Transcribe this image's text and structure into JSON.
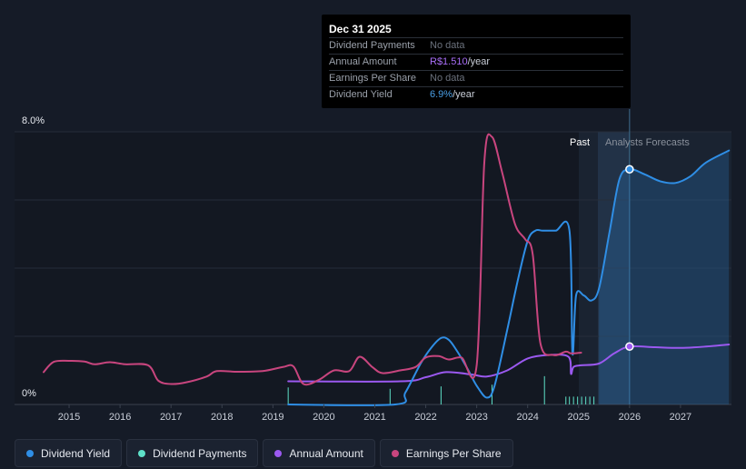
{
  "tooltip": {
    "date": "Dec 31 2025",
    "rows": [
      {
        "label": "Dividend Payments",
        "value": "No data",
        "unit": ""
      },
      {
        "label": "Annual Amount",
        "value": "R$1.510",
        "unit": "/year"
      },
      {
        "label": "Earnings Per Share",
        "value": "No data",
        "unit": ""
      },
      {
        "label": "Dividend Yield",
        "value": "6.9%",
        "unit": "/year"
      }
    ]
  },
  "zones": {
    "past": "Past",
    "forecast": "Analysts Forecasts"
  },
  "legend": [
    {
      "label": "Dividend Yield",
      "color": "#2f8ee5"
    },
    {
      "label": "Dividend Payments",
      "color": "#5ee0c8"
    },
    {
      "label": "Annual Amount",
      "color": "#9b59f0"
    },
    {
      "label": "Earnings Per Share",
      "color": "#c8457e"
    }
  ],
  "chart_data": {
    "type": "line",
    "y_tick_labels": [
      "8.0%",
      "0%"
    ],
    "ylim": [
      0,
      8
    ],
    "xlim": [
      2014.5,
      2028.0
    ],
    "x_ticks": [
      2015,
      2016,
      2017,
      2018,
      2019,
      2020,
      2021,
      2022,
      2023,
      2024,
      2025,
      2026,
      2027
    ],
    "past_end": 2025.0,
    "forecast_start": 2025.4,
    "cursor_x": 2026.0,
    "grid": true,
    "legend_position": "bottom",
    "colors": {
      "dividend_yield": "#2f8ee5",
      "dividend_payments": "#5ee0c8",
      "annual_amount": "#9b59f0",
      "earnings_per_share": "#c8457e"
    },
    "series": [
      {
        "name": "Dividend Yield",
        "x": [
          2019.3,
          2021.4,
          2021.6,
          2021.9,
          2022.1,
          2022.3,
          2022.45,
          2022.6,
          2022.8,
          2023.0,
          2023.2,
          2023.35,
          2023.6,
          2023.8,
          2024.0,
          2024.15,
          2024.3,
          2024.55,
          2024.82,
          2024.88,
          2024.95,
          2025.1,
          2025.25,
          2025.4,
          2025.6,
          2025.8,
          2026.0,
          2026.3,
          2026.6,
          2026.9,
          2027.2,
          2027.5,
          2027.95
        ],
        "y": [
          0.0,
          0.0,
          0.35,
          1.2,
          1.65,
          1.95,
          1.9,
          1.6,
          1.1,
          0.55,
          0.2,
          0.55,
          2.2,
          3.6,
          4.8,
          5.1,
          5.1,
          5.1,
          5.1,
          1.5,
          3.2,
          3.2,
          3.05,
          3.4,
          5.0,
          6.6,
          6.9,
          6.75,
          6.55,
          6.5,
          6.7,
          7.1,
          7.45
        ]
      },
      {
        "name": "Dividend Payments",
        "x": [
          2019.3,
          2021.3,
          2022.3,
          2023.3,
          2024.33,
          2024.75,
          2024.82,
          2024.9,
          2024.98,
          2025.06,
          2025.14,
          2025.22,
          2025.3
        ],
        "y": [
          0.42,
          0.38,
          0.45,
          0.5,
          0.75,
          0.15,
          0.15,
          0.15,
          0.15,
          0.15,
          0.15,
          0.15,
          0.15
        ]
      },
      {
        "name": "Annual Amount",
        "x": [
          2019.3,
          2021.5,
          2022.0,
          2022.4,
          2022.9,
          2023.2,
          2023.6,
          2024.0,
          2024.4,
          2024.8,
          2024.85,
          2024.9,
          2025.05,
          2025.4,
          2025.7,
          2026.0,
          2026.5,
          2027.0,
          2027.5,
          2027.95
        ],
        "y": [
          0.68,
          0.68,
          0.8,
          0.95,
          0.88,
          0.82,
          1.0,
          1.35,
          1.45,
          1.4,
          0.9,
          1.1,
          1.15,
          1.2,
          1.5,
          1.7,
          1.68,
          1.66,
          1.7,
          1.76
        ]
      },
      {
        "name": "Earnings Per Share",
        "x": [
          2014.5,
          2014.7,
          2015.0,
          2015.3,
          2015.5,
          2015.8,
          2016.1,
          2016.55,
          2016.75,
          2017.0,
          2017.3,
          2017.7,
          2017.9,
          2018.3,
          2018.8,
          2019.2,
          2019.4,
          2019.6,
          2019.9,
          2020.2,
          2020.5,
          2020.7,
          2020.95,
          2021.15,
          2021.5,
          2021.8,
          2022.0,
          2022.25,
          2022.45,
          2022.7,
          2023.0,
          2023.15,
          2023.3,
          2023.5,
          2023.75,
          2023.95,
          2024.1,
          2024.25,
          2024.5,
          2024.75,
          2024.85,
          2025.05
        ],
        "y": [
          0.95,
          1.25,
          1.28,
          1.26,
          1.18,
          1.24,
          1.18,
          1.15,
          0.7,
          0.6,
          0.65,
          0.82,
          0.98,
          0.96,
          0.98,
          1.1,
          1.12,
          0.6,
          0.72,
          1.0,
          0.98,
          1.4,
          1.1,
          0.92,
          1.0,
          1.1,
          1.38,
          1.42,
          1.32,
          1.38,
          1.15,
          7.1,
          7.85,
          6.8,
          5.3,
          4.85,
          4.4,
          1.8,
          1.45,
          1.55,
          1.5,
          1.52
        ]
      }
    ],
    "markers": [
      {
        "series": "Dividend Yield",
        "x": 2026.0,
        "y": 6.9
      },
      {
        "series": "Annual Amount",
        "x": 2026.0,
        "y": 1.7
      }
    ]
  }
}
